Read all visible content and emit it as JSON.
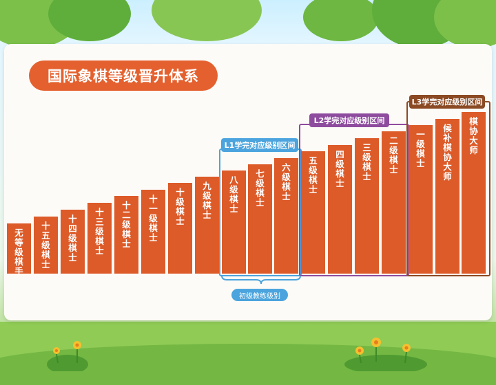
{
  "title": "国际象棋等级晋升体系",
  "levels": [
    {
      "label": "无等级棋手"
    },
    {
      "label": "十五级棋士"
    },
    {
      "label": "十四级棋士"
    },
    {
      "label": "十三级棋士"
    },
    {
      "label": "十二级棋士"
    },
    {
      "label": "十一级棋士"
    },
    {
      "label": "十级棋士"
    },
    {
      "label": "九级棋士"
    },
    {
      "label": "八级棋士"
    },
    {
      "label": "七级棋士"
    },
    {
      "label": "六级棋士"
    },
    {
      "label": "五级棋士"
    },
    {
      "label": "四级棋士"
    },
    {
      "label": "三级棋士"
    },
    {
      "label": "二级棋士"
    },
    {
      "label": "一级棋士"
    },
    {
      "label": "候补棋协大师"
    },
    {
      "label": "棋协大师"
    }
  ],
  "groups": {
    "l1": {
      "label": "L1学完对应级别区间",
      "color": "#4ba4dd"
    },
    "l2": {
      "label": "L2学完对应级别区间",
      "color": "#8e4c9e"
    },
    "l3": {
      "label": "L3学完对应级别区间",
      "color": "#8b4a24"
    }
  },
  "coach_label": "初级教练级别",
  "colors": {
    "bar": "#dc5b29",
    "title_bg": "#e4612f"
  }
}
